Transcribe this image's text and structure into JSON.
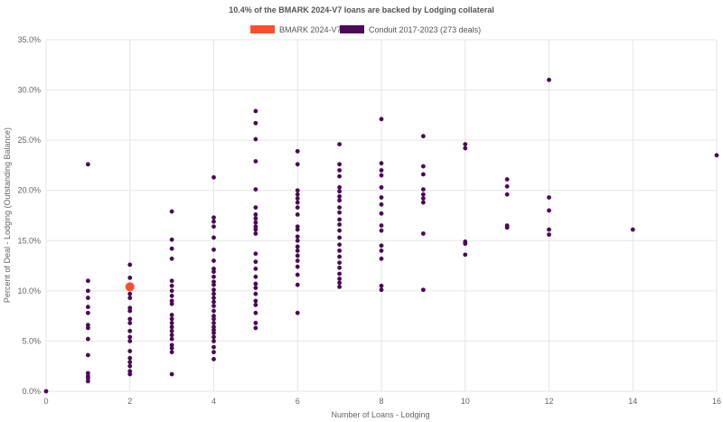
{
  "chart_data": {
    "type": "scatter",
    "title": "10.4% of the BMARK 2024-V7 loans are backed by Lodging collateral",
    "xlabel": "Number of Loans - Lodging",
    "ylabel": "Percent of Deal - Lodging (Outstanding Balance)",
    "xlim": [
      0,
      16
    ],
    "ylim": [
      0,
      35
    ],
    "x_ticks": [
      0,
      2,
      4,
      6,
      8,
      10,
      12,
      14,
      16
    ],
    "y_ticks": [
      0,
      5,
      10,
      15,
      20,
      25,
      30,
      35
    ],
    "y_tick_labels": [
      "0.0%",
      "5.0%",
      "10.0%",
      "15.0%",
      "20.0%",
      "25.0%",
      "30.0%",
      "35.0%"
    ],
    "grid": true,
    "legend_position": "top",
    "series": [
      {
        "name": "BMARK 2024-V7",
        "color": "#ff4e2e",
        "marker": "large-circle",
        "points": [
          [
            2,
            10.4
          ]
        ]
      },
      {
        "name": "Conduit 2017-2023 (273 deals)",
        "color": "#4a0a55",
        "marker": "small-circle",
        "points": [
          [
            0,
            0.0
          ],
          [
            1,
            22.6
          ],
          [
            1,
            11.0
          ],
          [
            1,
            10.0
          ],
          [
            1,
            9.3
          ],
          [
            1,
            8.4
          ],
          [
            1,
            7.8
          ],
          [
            1,
            6.6
          ],
          [
            1,
            6.3
          ],
          [
            1,
            5.2
          ],
          [
            1,
            3.6
          ],
          [
            1,
            1.8
          ],
          [
            1,
            1.5
          ],
          [
            1,
            1.3
          ],
          [
            1,
            1.0
          ],
          [
            2,
            12.6
          ],
          [
            2,
            11.3
          ],
          [
            2,
            9.7
          ],
          [
            2,
            9.3
          ],
          [
            2,
            8.3
          ],
          [
            2,
            8.0
          ],
          [
            2,
            7.2
          ],
          [
            2,
            6.8
          ],
          [
            2,
            6.0
          ],
          [
            2,
            5.4
          ],
          [
            2,
            5.0
          ],
          [
            2,
            4.0
          ],
          [
            2,
            3.3
          ],
          [
            2,
            2.9
          ],
          [
            2,
            2.5
          ],
          [
            2,
            2.0
          ],
          [
            2,
            1.7
          ],
          [
            3,
            17.9
          ],
          [
            3,
            15.1
          ],
          [
            3,
            14.2
          ],
          [
            3,
            13.2
          ],
          [
            3,
            11.0
          ],
          [
            3,
            10.5
          ],
          [
            3,
            10.0
          ],
          [
            3,
            9.5
          ],
          [
            3,
            9.0
          ],
          [
            3,
            8.7
          ],
          [
            3,
            7.6
          ],
          [
            3,
            7.2
          ],
          [
            3,
            6.8
          ],
          [
            3,
            6.4
          ],
          [
            3,
            6.0
          ],
          [
            3,
            5.6
          ],
          [
            3,
            5.2
          ],
          [
            3,
            4.6
          ],
          [
            3,
            4.3
          ],
          [
            3,
            3.9
          ],
          [
            3,
            1.7
          ],
          [
            4,
            21.3
          ],
          [
            4,
            17.3
          ],
          [
            4,
            16.9
          ],
          [
            4,
            16.4
          ],
          [
            4,
            15.3
          ],
          [
            4,
            14.1
          ],
          [
            4,
            13.0
          ],
          [
            4,
            12.2
          ],
          [
            4,
            11.9
          ],
          [
            4,
            11.4
          ],
          [
            4,
            10.9
          ],
          [
            4,
            10.6
          ],
          [
            4,
            10.1
          ],
          [
            4,
            9.7
          ],
          [
            4,
            9.3
          ],
          [
            4,
            8.9
          ],
          [
            4,
            8.5
          ],
          [
            4,
            8.0
          ],
          [
            4,
            7.5
          ],
          [
            4,
            7.2
          ],
          [
            4,
            6.8
          ],
          [
            4,
            6.4
          ],
          [
            4,
            6.1
          ],
          [
            4,
            5.8
          ],
          [
            4,
            5.4
          ],
          [
            4,
            5.0
          ],
          [
            4,
            4.4
          ],
          [
            4,
            3.9
          ],
          [
            4,
            3.2
          ],
          [
            5,
            27.9
          ],
          [
            5,
            26.7
          ],
          [
            5,
            25.1
          ],
          [
            5,
            22.9
          ],
          [
            5,
            20.1
          ],
          [
            5,
            18.3
          ],
          [
            5,
            17.6
          ],
          [
            5,
            17.2
          ],
          [
            5,
            16.8
          ],
          [
            5,
            16.4
          ],
          [
            5,
            16.1
          ],
          [
            5,
            15.7
          ],
          [
            5,
            13.7
          ],
          [
            5,
            12.9
          ],
          [
            5,
            12.2
          ],
          [
            5,
            11.4
          ],
          [
            5,
            10.7
          ],
          [
            5,
            10.3
          ],
          [
            5,
            9.7
          ],
          [
            5,
            9.0
          ],
          [
            5,
            8.6
          ],
          [
            5,
            7.8
          ],
          [
            5,
            6.8
          ],
          [
            5,
            6.3
          ],
          [
            6,
            23.9
          ],
          [
            6,
            22.6
          ],
          [
            6,
            20.0
          ],
          [
            6,
            19.6
          ],
          [
            6,
            19.2
          ],
          [
            6,
            18.8
          ],
          [
            6,
            18.3
          ],
          [
            6,
            17.6
          ],
          [
            6,
            16.4
          ],
          [
            6,
            16.1
          ],
          [
            6,
            15.4
          ],
          [
            6,
            15.0
          ],
          [
            6,
            14.4
          ],
          [
            6,
            14.0
          ],
          [
            6,
            13.5
          ],
          [
            6,
            13.0
          ],
          [
            6,
            12.4
          ],
          [
            6,
            11.6
          ],
          [
            6,
            10.6
          ],
          [
            6,
            7.8
          ],
          [
            7,
            24.6
          ],
          [
            7,
            22.6
          ],
          [
            7,
            22.0
          ],
          [
            7,
            21.4
          ],
          [
            7,
            20.3
          ],
          [
            7,
            19.9
          ],
          [
            7,
            19.4
          ],
          [
            7,
            19.0
          ],
          [
            7,
            18.3
          ],
          [
            7,
            17.8
          ],
          [
            7,
            17.1
          ],
          [
            7,
            16.6
          ],
          [
            7,
            16.0
          ],
          [
            7,
            15.3
          ],
          [
            7,
            14.6
          ],
          [
            7,
            14.0
          ],
          [
            7,
            13.4
          ],
          [
            7,
            12.8
          ],
          [
            7,
            12.3
          ],
          [
            7,
            11.7
          ],
          [
            7,
            11.2
          ],
          [
            7,
            10.8
          ],
          [
            7,
            10.4
          ],
          [
            8,
            27.1
          ],
          [
            8,
            22.7
          ],
          [
            8,
            22.0
          ],
          [
            8,
            21.5
          ],
          [
            8,
            20.3
          ],
          [
            8,
            19.3
          ],
          [
            8,
            18.6
          ],
          [
            8,
            17.7
          ],
          [
            8,
            16.5
          ],
          [
            8,
            16.0
          ],
          [
            8,
            14.5
          ],
          [
            8,
            14.0
          ],
          [
            8,
            13.2
          ],
          [
            8,
            10.5
          ],
          [
            8,
            10.1
          ],
          [
            9,
            25.4
          ],
          [
            9,
            22.4
          ],
          [
            9,
            21.6
          ],
          [
            9,
            20.1
          ],
          [
            9,
            19.6
          ],
          [
            9,
            19.2
          ],
          [
            9,
            18.8
          ],
          [
            9,
            15.7
          ],
          [
            9,
            10.1
          ],
          [
            10,
            24.6
          ],
          [
            10,
            24.2
          ],
          [
            10,
            14.9
          ],
          [
            10,
            14.7
          ],
          [
            10,
            13.6
          ],
          [
            11,
            21.1
          ],
          [
            11,
            20.4
          ],
          [
            11,
            19.6
          ],
          [
            11,
            16.5
          ],
          [
            11,
            16.3
          ],
          [
            12,
            31.0
          ],
          [
            12,
            19.3
          ],
          [
            12,
            18.0
          ],
          [
            12,
            16.1
          ],
          [
            12,
            15.6
          ],
          [
            14,
            16.1
          ],
          [
            16,
            23.5
          ]
        ]
      }
    ]
  }
}
